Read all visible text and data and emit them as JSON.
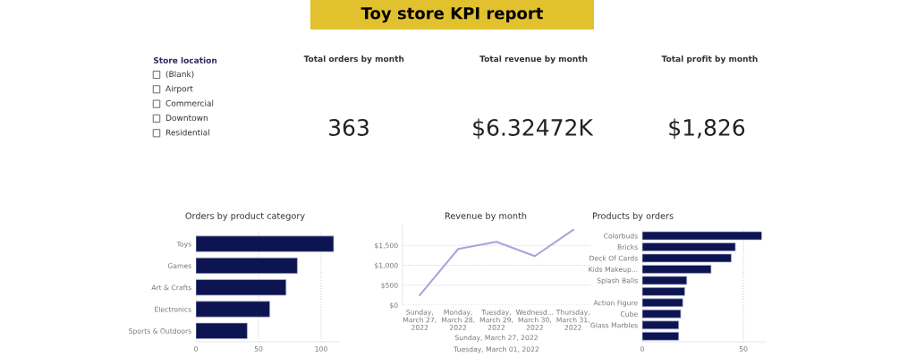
{
  "chart_data": [
    {
      "type": "other",
      "title": "Toy store KPI report"
    },
    {
      "type": "other",
      "title": "Store location",
      "annotations": [
        "(Blank)",
        "Airport",
        "Commercial",
        "Downtown",
        "Residential"
      ]
    },
    {
      "type": "other",
      "title": "Total orders by month",
      "annotations": [
        "363"
      ]
    },
    {
      "type": "other",
      "title": "Total revenue by month",
      "annotations": [
        "$6.32472K"
      ]
    },
    {
      "type": "other",
      "title": "Total profit by month",
      "annotations": [
        "$1,826"
      ]
    },
    {
      "type": "bar",
      "orientation": "horizontal",
      "title": "Orders by product category",
      "categories": [
        "Toys",
        "Games",
        "Art & Crafts",
        "Electronics",
        "Sports & Outdoors"
      ],
      "values": [
        110,
        81,
        72,
        59,
        41
      ],
      "color": "#0d1452",
      "xlim": [
        0,
        115
      ],
      "xticks": [
        0,
        50,
        100
      ],
      "grid": "x"
    },
    {
      "type": "line",
      "title": "Revenue by month",
      "categories": [
        "Sunday,\nMarch 27,\n2022",
        "Monday,\nMarch 28,\n2022",
        "Tuesday,\nMarch 29,\n2022",
        "Wednesd...\nMarch 30,\n2022",
        "Thursday,\nMarch 31,\n2022"
      ],
      "values": [
        250,
        1410,
        1590,
        1230,
        1890
      ],
      "color": "#a3a6de",
      "ylim": [
        0,
        2000
      ],
      "yticks": [
        {
          "value": 0,
          "label": "$0"
        },
        {
          "value": 500,
          "label": "$500"
        },
        {
          "value": 1000,
          "label": "$1,000"
        },
        {
          "value": 1500,
          "label": "$1,500"
        }
      ],
      "grid": "y",
      "annotations": [
        "Sunday, March 27, 2022",
        "Tuesday, March 01, 2022"
      ]
    },
    {
      "type": "bar",
      "orientation": "horizontal",
      "title": "Products by orders",
      "categories": [
        "Colorbuds",
        "Bricks",
        "Deck Of Cards",
        "Kids Makeup...",
        "Splash Balls",
        null,
        "Action Figure",
        "Cube",
        "Glass Marbles",
        null
      ],
      "values": [
        59,
        46,
        44,
        34,
        22,
        21,
        20,
        19,
        18,
        18
      ],
      "color": "#0d1452",
      "xlim": [
        0,
        61
      ],
      "xticks": [
        0,
        50
      ],
      "grid": "x"
    }
  ]
}
